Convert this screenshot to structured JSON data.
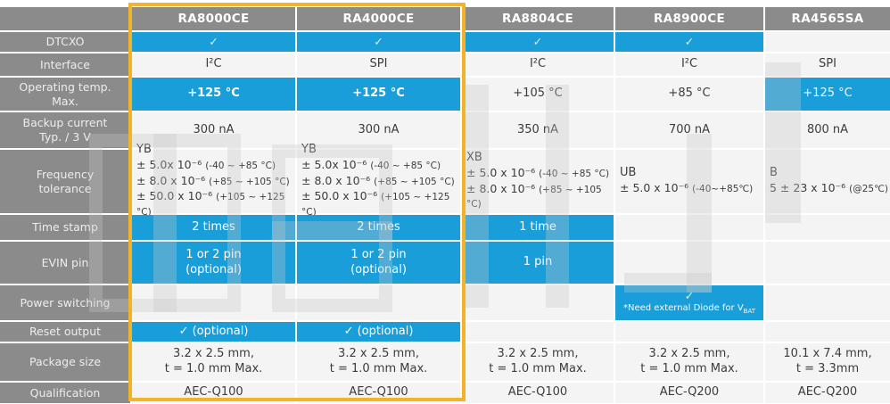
{
  "colors": {
    "blue": "#1A9ED9",
    "yellow": "#F0B32A",
    "gray": "#8B8B8B",
    "light": "#F4F4F4",
    "text_dark": "#3C3C3C",
    "label_text": "#EDEDED"
  },
  "header": {
    "products": [
      "RA8000CE",
      "RA4000CE",
      "RA8804CE",
      "RA8900CE",
      "RA4565SA"
    ]
  },
  "highlight": {
    "note": "frame around RA8000CE and RA4000CE columns"
  },
  "rows": [
    {
      "key": "dtcxo",
      "label": "DTCXO",
      "cells": [
        {
          "bg": "blue",
          "check": true
        },
        {
          "bg": "blue",
          "check": true
        },
        {
          "bg": "blue",
          "check": true
        },
        {
          "bg": "blue",
          "check": true
        },
        {
          "bg": "light"
        }
      ]
    },
    {
      "key": "interface",
      "label": "Interface",
      "cells": [
        {
          "bg": "light",
          "text": "I²C"
        },
        {
          "bg": "light",
          "text": "SPI"
        },
        {
          "bg": "light",
          "text": "I²C"
        },
        {
          "bg": "light",
          "text": "I²C"
        },
        {
          "bg": "light",
          "text": "SPI"
        }
      ]
    },
    {
      "key": "op-temp",
      "label": "Operating temp.\nMax.",
      "cells": [
        {
          "bg": "blue",
          "text": "+125 °C",
          "bold": true
        },
        {
          "bg": "blue",
          "text": "+125 °C",
          "bold": true
        },
        {
          "bg": "light",
          "text": "+105 °C"
        },
        {
          "bg": "light",
          "text": "+85 °C"
        },
        {
          "bg": "blue",
          "text": "+125 °C",
          "dim": true
        }
      ]
    },
    {
      "key": "backup-current",
      "label": "Backup current\nTyp. / 3 V",
      "cells": [
        {
          "bg": "light",
          "text": "300 nA"
        },
        {
          "bg": "light",
          "text": "300 nA"
        },
        {
          "bg": "light",
          "text": "350 nA"
        },
        {
          "bg": "light",
          "text": "700 nA"
        },
        {
          "bg": "light",
          "text": "800 nA"
        }
      ]
    },
    {
      "key": "freq-tolerance",
      "label": "Frequency\ntolerance",
      "cells": [
        {
          "bg": "light",
          "align": "left",
          "lines": [
            "YB",
            {
              "m": "± 5.0x 10⁻⁶ ",
              "s": "(-40 ~ +85 °C)"
            },
            {
              "m": "± 8.0 x 10⁻⁶ ",
              "s": "(+85 ~ +105 °C)"
            },
            {
              "m": "± 50.0 x 10⁻⁶ ",
              "s": "(+105 ~ +125 °C)"
            }
          ]
        },
        {
          "bg": "light",
          "align": "left",
          "lines": [
            "YB",
            {
              "m": "± 5.0x 10⁻⁶ ",
              "s": "(-40 ~ +85 °C)"
            },
            {
              "m": "± 8.0 x 10⁻⁶ ",
              "s": "(+85 ~ +105 °C)"
            },
            {
              "m": "± 50.0 x 10⁻⁶ ",
              "s": "(+105 ~ +125 °C)"
            }
          ]
        },
        {
          "bg": "light",
          "align": "left",
          "lines": [
            "XB",
            {
              "m": "± 5.0 x 10⁻⁶ ",
              "s": "(-40 ~ +85 °C)"
            },
            {
              "m": "± 8.0 x 10⁻⁶ ",
              "s": "(+85 ~ +105 °C)"
            }
          ]
        },
        {
          "bg": "light",
          "align": "left",
          "lines": [
            "UB",
            {
              "m": "± 5.0 x 10⁻⁶ ",
              "s": "(-40~+85℃)"
            }
          ]
        },
        {
          "bg": "light",
          "align": "left",
          "lines": [
            "B",
            {
              "m": "5 ± 23 x 10⁻⁶ ",
              "s": "(@25℃)"
            }
          ]
        }
      ]
    },
    {
      "key": "time-stamp",
      "label": "Time stamp",
      "cells": [
        {
          "bg": "blue",
          "text": "2 times"
        },
        {
          "bg": "blue",
          "text": "2 times"
        },
        {
          "bg": "blue",
          "text": "1 time"
        },
        {
          "bg": "light"
        },
        {
          "bg": "light"
        }
      ]
    },
    {
      "key": "evin-pin",
      "label": "EVIN pin",
      "cells": [
        {
          "bg": "blue",
          "lines": [
            "1 or 2 pin",
            "(optional)"
          ]
        },
        {
          "bg": "blue",
          "lines": [
            "1 or 2 pin",
            "(optional)"
          ]
        },
        {
          "bg": "blue",
          "text": "1 pin"
        },
        {
          "bg": "light"
        },
        {
          "bg": "light"
        }
      ]
    },
    {
      "key": "power-switching",
      "label": "Power switching",
      "cells": [
        {
          "bg": "light"
        },
        {
          "bg": "light"
        },
        {
          "bg": "light"
        },
        {
          "bg": "blue",
          "check": true,
          "note": "*Need external Diode for V",
          "note_sub": "BAT"
        },
        {
          "bg": "light"
        }
      ]
    },
    {
      "key": "reset-output",
      "label": "Reset output",
      "cells": [
        {
          "bg": "blue",
          "text": "✓ (optional)"
        },
        {
          "bg": "blue",
          "text": "✓ (optional)"
        },
        {
          "bg": "light"
        },
        {
          "bg": "light"
        },
        {
          "bg": "light"
        }
      ]
    },
    {
      "key": "package-size",
      "label": "Package size",
      "cells": [
        {
          "bg": "light",
          "lines": [
            "3.2 x 2.5 mm,",
            "t = 1.0 mm Max."
          ]
        },
        {
          "bg": "light",
          "lines": [
            "3.2 x 2.5 mm,",
            "t = 1.0 mm Max."
          ]
        },
        {
          "bg": "light",
          "lines": [
            "3.2 x 2.5 mm,",
            "t = 1.0 mm Max."
          ]
        },
        {
          "bg": "light",
          "lines": [
            "3.2 x 2.5 mm,",
            "t = 1.0 mm Max."
          ]
        },
        {
          "bg": "light",
          "lines": [
            "10.1 x 7.4 mm,",
            "t = 3.3mm"
          ]
        }
      ]
    },
    {
      "key": "qualification",
      "label": "Qualification",
      "cells": [
        {
          "bg": "light",
          "text": "AEC-Q100"
        },
        {
          "bg": "light",
          "text": "AEC-Q100"
        },
        {
          "bg": "light",
          "text": "AEC-Q100"
        },
        {
          "bg": "light",
          "text": "AEC-Q200"
        },
        {
          "bg": "light",
          "text": "AEC-Q200"
        }
      ]
    }
  ]
}
